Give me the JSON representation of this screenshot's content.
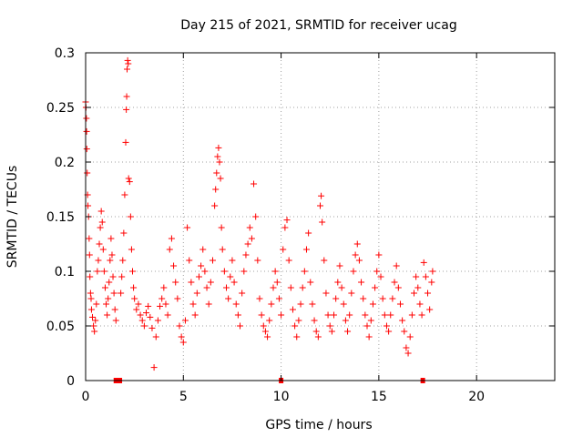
{
  "chart_data": {
    "type": "scatter",
    "title": "Day 215 of 2021, SRMTID for receiver ucag",
    "xlabel": "GPS time / hours",
    "ylabel": "SRMTID / TECUs",
    "xlim": [
      0,
      24
    ],
    "ylim": [
      0,
      0.3
    ],
    "xticks": [
      "0",
      "5",
      "10",
      "15",
      "20"
    ],
    "yticks": [
      "0",
      "0.05",
      "0.1",
      "0.15",
      "0.2",
      "0.25",
      "0.3"
    ],
    "grid": true,
    "marker": "+",
    "color": "#ff0000",
    "series": [
      {
        "name": "SRMTID",
        "points": [
          [
            0.0,
            0.255
          ],
          [
            0.02,
            0.25
          ],
          [
            0.04,
            0.24
          ],
          [
            0.05,
            0.228
          ],
          [
            0.06,
            0.212
          ],
          [
            0.08,
            0.19
          ],
          [
            0.1,
            0.17
          ],
          [
            0.12,
            0.16
          ],
          [
            0.15,
            0.15
          ],
          [
            0.18,
            0.13
          ],
          [
            0.2,
            0.115
          ],
          [
            0.22,
            0.095
          ],
          [
            0.25,
            0.08
          ],
          [
            0.28,
            0.075
          ],
          [
            0.3,
            0.065
          ],
          [
            0.35,
            0.058
          ],
          [
            0.4,
            0.05
          ],
          [
            0.45,
            0.045
          ],
          [
            0.5,
            0.055
          ],
          [
            0.55,
            0.07
          ],
          [
            0.6,
            0.1
          ],
          [
            0.65,
            0.11
          ],
          [
            0.7,
            0.125
          ],
          [
            0.75,
            0.14
          ],
          [
            0.8,
            0.155
          ],
          [
            0.85,
            0.145
          ],
          [
            0.9,
            0.12
          ],
          [
            0.95,
            0.1
          ],
          [
            1.0,
            0.085
          ],
          [
            1.05,
            0.07
          ],
          [
            1.1,
            0.06
          ],
          [
            1.15,
            0.075
          ],
          [
            1.2,
            0.09
          ],
          [
            1.25,
            0.11
          ],
          [
            1.3,
            0.13
          ],
          [
            1.35,
            0.115
          ],
          [
            1.4,
            0.095
          ],
          [
            1.45,
            0.08
          ],
          [
            1.5,
            0.065
          ],
          [
            1.55,
            0.055
          ],
          [
            1.8,
            0.08
          ],
          [
            1.85,
            0.095
          ],
          [
            1.9,
            0.11
          ],
          [
            1.95,
            0.135
          ],
          [
            2.0,
            0.17
          ],
          [
            2.05,
            0.218
          ],
          [
            2.08,
            0.248
          ],
          [
            2.1,
            0.26
          ],
          [
            2.12,
            0.285
          ],
          [
            2.15,
            0.293
          ],
          [
            2.18,
            0.29
          ],
          [
            2.2,
            0.185
          ],
          [
            2.25,
            0.182
          ],
          [
            2.3,
            0.15
          ],
          [
            2.35,
            0.12
          ],
          [
            2.4,
            0.1
          ],
          [
            2.45,
            0.085
          ],
          [
            2.5,
            0.075
          ],
          [
            2.6,
            0.065
          ],
          [
            2.7,
            0.07
          ],
          [
            2.8,
            0.06
          ],
          [
            2.9,
            0.055
          ],
          [
            3.0,
            0.05
          ],
          [
            3.1,
            0.062
          ],
          [
            3.2,
            0.068
          ],
          [
            3.3,
            0.058
          ],
          [
            3.4,
            0.048
          ],
          [
            3.5,
            0.012
          ],
          [
            3.6,
            0.04
          ],
          [
            3.7,
            0.055
          ],
          [
            3.8,
            0.068
          ],
          [
            3.9,
            0.075
          ],
          [
            4.0,
            0.085
          ],
          [
            4.1,
            0.07
          ],
          [
            4.2,
            0.06
          ],
          [
            4.3,
            0.12
          ],
          [
            4.4,
            0.13
          ],
          [
            4.5,
            0.105
          ],
          [
            4.6,
            0.09
          ],
          [
            4.7,
            0.075
          ],
          [
            4.8,
            0.05
          ],
          [
            4.9,
            0.04
          ],
          [
            5.0,
            0.035
          ],
          [
            5.1,
            0.055
          ],
          [
            5.2,
            0.14
          ],
          [
            5.3,
            0.11
          ],
          [
            5.4,
            0.09
          ],
          [
            5.5,
            0.07
          ],
          [
            5.6,
            0.06
          ],
          [
            5.7,
            0.08
          ],
          [
            5.8,
            0.095
          ],
          [
            5.9,
            0.105
          ],
          [
            6.0,
            0.12
          ],
          [
            6.1,
            0.1
          ],
          [
            6.2,
            0.085
          ],
          [
            6.3,
            0.07
          ],
          [
            6.4,
            0.09
          ],
          [
            6.5,
            0.11
          ],
          [
            6.6,
            0.16
          ],
          [
            6.65,
            0.175
          ],
          [
            6.7,
            0.19
          ],
          [
            6.75,
            0.205
          ],
          [
            6.8,
            0.213
          ],
          [
            6.85,
            0.2
          ],
          [
            6.9,
            0.185
          ],
          [
            6.95,
            0.14
          ],
          [
            7.0,
            0.12
          ],
          [
            7.1,
            0.1
          ],
          [
            7.2,
            0.085
          ],
          [
            7.3,
            0.075
          ],
          [
            7.4,
            0.095
          ],
          [
            7.5,
            0.11
          ],
          [
            7.6,
            0.09
          ],
          [
            7.7,
            0.07
          ],
          [
            7.8,
            0.06
          ],
          [
            7.9,
            0.05
          ],
          [
            8.0,
            0.08
          ],
          [
            8.1,
            0.1
          ],
          [
            8.2,
            0.115
          ],
          [
            8.3,
            0.125
          ],
          [
            8.4,
            0.14
          ],
          [
            8.5,
            0.13
          ],
          [
            8.6,
            0.18
          ],
          [
            8.7,
            0.15
          ],
          [
            8.8,
            0.11
          ],
          [
            8.9,
            0.075
          ],
          [
            9.0,
            0.06
          ],
          [
            9.1,
            0.05
          ],
          [
            9.2,
            0.045
          ],
          [
            9.3,
            0.04
          ],
          [
            9.4,
            0.055
          ],
          [
            9.5,
            0.07
          ],
          [
            9.6,
            0.085
          ],
          [
            9.7,
            0.1
          ],
          [
            9.8,
            0.09
          ],
          [
            9.9,
            0.075
          ],
          [
            10.0,
            0.06
          ],
          [
            10.1,
            0.12
          ],
          [
            10.2,
            0.14
          ],
          [
            10.3,
            0.147
          ],
          [
            10.4,
            0.11
          ],
          [
            10.5,
            0.085
          ],
          [
            10.6,
            0.065
          ],
          [
            10.7,
            0.05
          ],
          [
            10.8,
            0.04
          ],
          [
            10.9,
            0.055
          ],
          [
            11.0,
            0.07
          ],
          [
            11.1,
            0.085
          ],
          [
            11.2,
            0.1
          ],
          [
            11.3,
            0.12
          ],
          [
            11.4,
            0.135
          ],
          [
            11.5,
            0.09
          ],
          [
            11.6,
            0.07
          ],
          [
            11.7,
            0.055
          ],
          [
            11.8,
            0.045
          ],
          [
            11.9,
            0.04
          ],
          [
            12.0,
            0.16
          ],
          [
            12.05,
            0.169
          ],
          [
            12.1,
            0.145
          ],
          [
            12.2,
            0.11
          ],
          [
            12.3,
            0.08
          ],
          [
            12.4,
            0.06
          ],
          [
            12.5,
            0.05
          ],
          [
            12.6,
            0.045
          ],
          [
            12.7,
            0.06
          ],
          [
            12.8,
            0.075
          ],
          [
            12.9,
            0.09
          ],
          [
            13.0,
            0.105
          ],
          [
            13.1,
            0.085
          ],
          [
            13.2,
            0.07
          ],
          [
            13.3,
            0.055
          ],
          [
            13.4,
            0.045
          ],
          [
            13.5,
            0.06
          ],
          [
            13.6,
            0.08
          ],
          [
            13.7,
            0.1
          ],
          [
            13.8,
            0.115
          ],
          [
            13.9,
            0.125
          ],
          [
            14.0,
            0.11
          ],
          [
            14.1,
            0.09
          ],
          [
            14.2,
            0.075
          ],
          [
            14.3,
            0.06
          ],
          [
            14.4,
            0.05
          ],
          [
            14.5,
            0.04
          ],
          [
            14.6,
            0.055
          ],
          [
            14.7,
            0.07
          ],
          [
            14.8,
            0.085
          ],
          [
            14.9,
            0.1
          ],
          [
            15.0,
            0.115
          ],
          [
            15.1,
            0.095
          ],
          [
            15.2,
            0.075
          ],
          [
            15.3,
            0.06
          ],
          [
            15.4,
            0.05
          ],
          [
            15.5,
            0.045
          ],
          [
            15.6,
            0.06
          ],
          [
            15.7,
            0.075
          ],
          [
            15.8,
            0.09
          ],
          [
            15.9,
            0.105
          ],
          [
            16.0,
            0.085
          ],
          [
            16.1,
            0.07
          ],
          [
            16.2,
            0.055
          ],
          [
            16.3,
            0.045
          ],
          [
            16.4,
            0.03
          ],
          [
            16.5,
            0.025
          ],
          [
            16.6,
            0.04
          ],
          [
            16.7,
            0.06
          ],
          [
            16.8,
            0.08
          ],
          [
            16.9,
            0.095
          ],
          [
            17.0,
            0.085
          ],
          [
            17.1,
            0.07
          ],
          [
            17.2,
            0.06
          ],
          [
            17.3,
            0.108
          ],
          [
            17.4,
            0.095
          ],
          [
            17.5,
            0.08
          ],
          [
            17.6,
            0.065
          ],
          [
            17.7,
            0.09
          ],
          [
            17.75,
            0.1
          ]
        ]
      }
    ],
    "zero_markers_x": [
      1.55,
      1.75,
      10.0,
      17.25
    ]
  }
}
